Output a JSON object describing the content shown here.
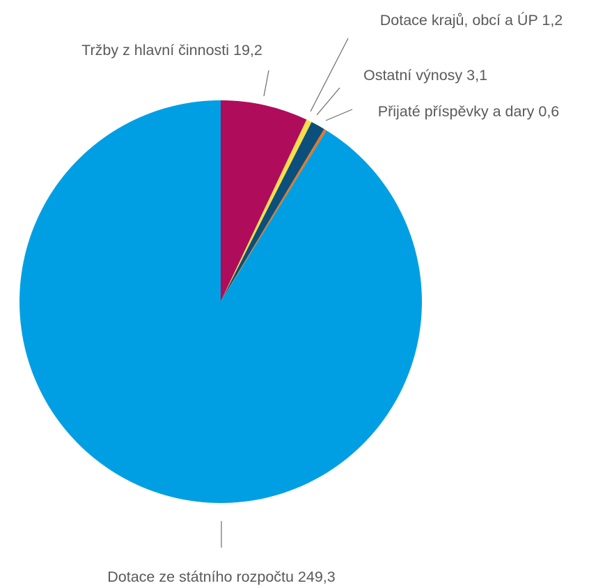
{
  "chart_data": {
    "type": "pie",
    "slices": [
      {
        "name": "Tržby z hlavní činnosti",
        "value": 19.2,
        "label": "Tržby z hlavní činnosti 19,2",
        "color": "#b00c5c"
      },
      {
        "name": "Dotace krajů, obcí a ÚP",
        "value": 1.2,
        "label": "Dotace krajů, obcí a ÚP 1,2",
        "color": "#f6e04a"
      },
      {
        "name": "Ostatní výnosy",
        "value": 3.1,
        "label": "Ostatní výnosy 3,1",
        "color": "#0b4f7c"
      },
      {
        "name": "Přijaté příspěvky a dary",
        "value": 0.6,
        "label": "Přijaté příspěvky a dary 0,6",
        "color": "#e87722"
      },
      {
        "name": "Dotace ze státního rozpočtu",
        "value": 249.3,
        "label": "Dotace ze státního rozpočtu 249,3",
        "color": "#009fe3"
      }
    ],
    "start_angle": "12 o'clock",
    "direction": "clockwise",
    "legend": "none"
  }
}
